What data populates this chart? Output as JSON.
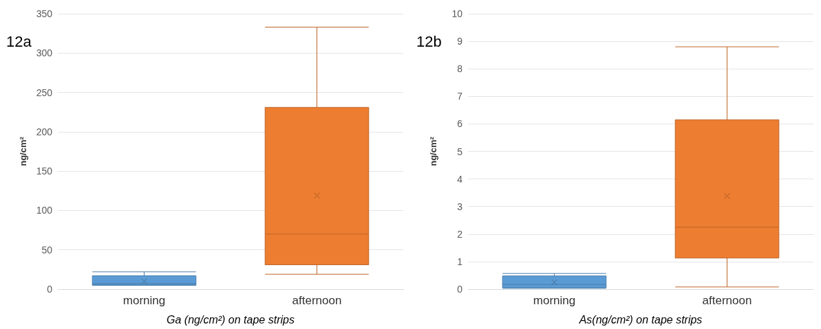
{
  "chart_data": [
    {
      "type": "box",
      "title": "12a",
      "ylabel": "ng/cm²",
      "xlabel": "Ga (ng/cm²) on tape strips",
      "categories": [
        "morning",
        "afternoon"
      ],
      "colors": [
        "#5b9bd5",
        "#ed7d31"
      ],
      "boxes": [
        {
          "low": 5,
          "q1": 5,
          "median": 7,
          "q3": 17,
          "high": 22,
          "mean": 10
        },
        {
          "low": 19,
          "q1": 31,
          "median": 70,
          "q3": 231,
          "high": 333,
          "mean": 119
        }
      ],
      "ylim": [
        0,
        350
      ],
      "yticks": [
        0,
        50,
        100,
        150,
        200,
        250,
        300,
        350
      ],
      "grid": "y"
    },
    {
      "type": "box",
      "title": "12b",
      "ylabel": "ng/cm²",
      "xlabel": "As(ng/cm²) on tape strips",
      "categories": [
        "morning",
        "afternoon"
      ],
      "colors": [
        "#5b9bd5",
        "#ed7d31"
      ],
      "boxes": [
        {
          "low": 0.03,
          "q1": 0.05,
          "median": 0.17,
          "q3": 0.48,
          "high": 0.57,
          "mean": 0.25
        },
        {
          "low": 0.08,
          "q1": 1.13,
          "median": 2.25,
          "q3": 6.15,
          "high": 8.8,
          "mean": 3.38
        }
      ],
      "ylim": [
        0,
        10
      ],
      "yticks": [
        0,
        1,
        2,
        3,
        4,
        5,
        6,
        7,
        8,
        9,
        10
      ],
      "grid": "y"
    }
  ]
}
